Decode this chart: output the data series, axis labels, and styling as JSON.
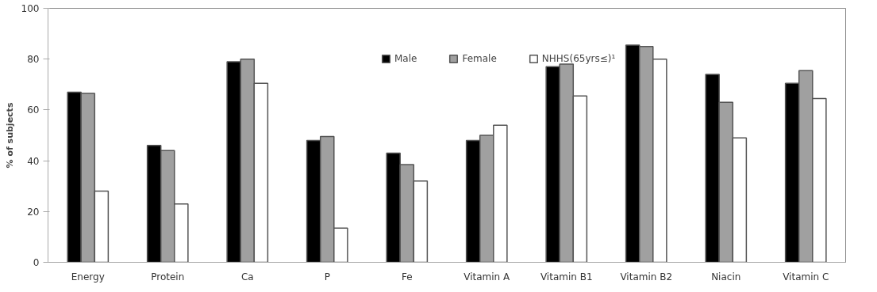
{
  "chart_data": {
    "type": "bar",
    "ylabel": "% of subjects",
    "categories": [
      "Energy",
      "Protein",
      "Ca",
      "P",
      "Fe",
      "Vitamin A",
      "Vitamin B1",
      "Vitamin B2",
      "Niacin",
      "Vitamin C"
    ],
    "series": [
      {
        "name": "Male",
        "color": "#000000",
        "values": [
          67,
          46,
          79,
          48,
          43,
          48,
          77,
          85.5,
          74,
          70.5
        ]
      },
      {
        "name": "Female",
        "color": "#a0a0a0",
        "values": [
          66.5,
          44,
          80,
          49.5,
          38.5,
          50,
          78,
          85,
          63,
          75.5
        ]
      },
      {
        "name": "NHHS(65yrs≤)¹",
        "color": "#ffffff",
        "values": [
          28,
          23,
          70.5,
          13.5,
          32,
          54,
          65.5,
          80,
          49,
          64.5
        ]
      }
    ],
    "ylim": [
      0,
      100
    ],
    "yticks": [
      0,
      20,
      40,
      60,
      80,
      100
    ],
    "grid": false,
    "legend": "top"
  }
}
